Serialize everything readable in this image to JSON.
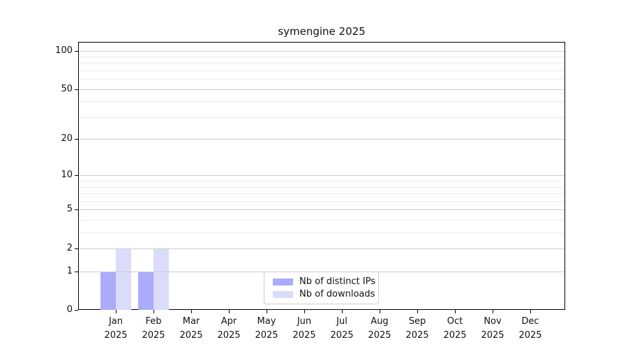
{
  "figure": {
    "title": "symengine 2025"
  },
  "chart_data": {
    "type": "bar",
    "title": "symengine 2025",
    "categories": [
      "Jan",
      "Feb",
      "Mar",
      "Apr",
      "May",
      "Jun",
      "Jul",
      "Aug",
      "Sep",
      "Oct",
      "Nov",
      "Dec"
    ],
    "x_year_label": "2025",
    "series": [
      {
        "name": "Nb of distinct IPs",
        "color": "#aaabfa",
        "values": [
          1,
          1,
          0,
          0,
          0,
          0,
          0,
          0,
          0,
          0,
          0,
          0
        ]
      },
      {
        "name": "Nb of downloads",
        "color": "#dbdcfa",
        "values": [
          2,
          2,
          0,
          0,
          0,
          0,
          0,
          0,
          0,
          0,
          0,
          0
        ]
      }
    ],
    "xlabel": "",
    "ylabel": "",
    "yscale": "log1p",
    "ylim": [
      0,
      117
    ],
    "yticks": [
      0,
      1,
      2,
      5,
      10,
      20,
      50,
      100
    ],
    "yticks_minor": [
      3,
      4,
      6,
      7,
      8,
      9,
      30,
      40,
      60,
      70,
      80,
      90
    ],
    "grid": true,
    "legend_position": "lower center"
  },
  "colors": {
    "background": "#ffffff",
    "axis": "#000000",
    "text": "#111111",
    "grid_major": "#cccccc",
    "grid_minor": "#ebebeb",
    "legend_border": "#cccccc"
  }
}
